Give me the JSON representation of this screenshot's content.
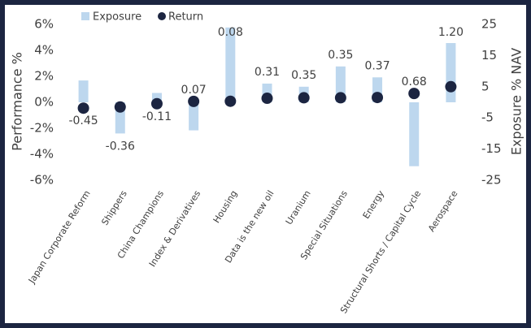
{
  "chart_data": {
    "type": "bar-dot",
    "y_label": "Performance %",
    "y2_label": "Exposure % NAV",
    "categories": [
      "Japan Corporate Reform",
      "Shippers",
      "China Champions",
      "Index & Derivatives",
      "Housing",
      "Data is the new oil",
      "Uranium",
      "Special Situations",
      "Energy",
      "Structural Shorts / Capital Cycle",
      "Aerospace"
    ],
    "series": [
      {
        "name": "Exposure",
        "color": "#bdd7ee",
        "axis": "y2",
        "values": [
          7,
          -10,
          3,
          -9,
          24,
          6,
          5,
          11.5,
          8,
          -20.5,
          19
        ]
      },
      {
        "name": "Return",
        "color": "#1c2541",
        "values": [
          -0.45,
          -0.36,
          -0.11,
          0.07,
          0.08,
          0.31,
          0.35,
          0.35,
          0.37,
          0.68,
          1.2
        ],
        "value_labels": [
          "-0.45",
          "-0.36",
          "-0.11",
          "0.07",
          "0.08",
          "0.31",
          "0.35",
          "0.35",
          "0.37",
          "0.68",
          "1.20"
        ]
      }
    ],
    "ylim": [
      -6,
      6
    ],
    "yticks": [
      {
        "value": -6,
        "label": "-6%"
      },
      {
        "value": -4,
        "label": "-4%"
      },
      {
        "value": -2,
        "label": "-2%"
      },
      {
        "value": 0,
        "label": "0%"
      },
      {
        "value": 2,
        "label": "2%"
      },
      {
        "value": 4,
        "label": "4%"
      },
      {
        "value": 6,
        "label": "6%"
      }
    ],
    "y2lim": [
      -25,
      25
    ],
    "y2ticks": [
      -25,
      -15,
      -5,
      5,
      15,
      25
    ]
  }
}
